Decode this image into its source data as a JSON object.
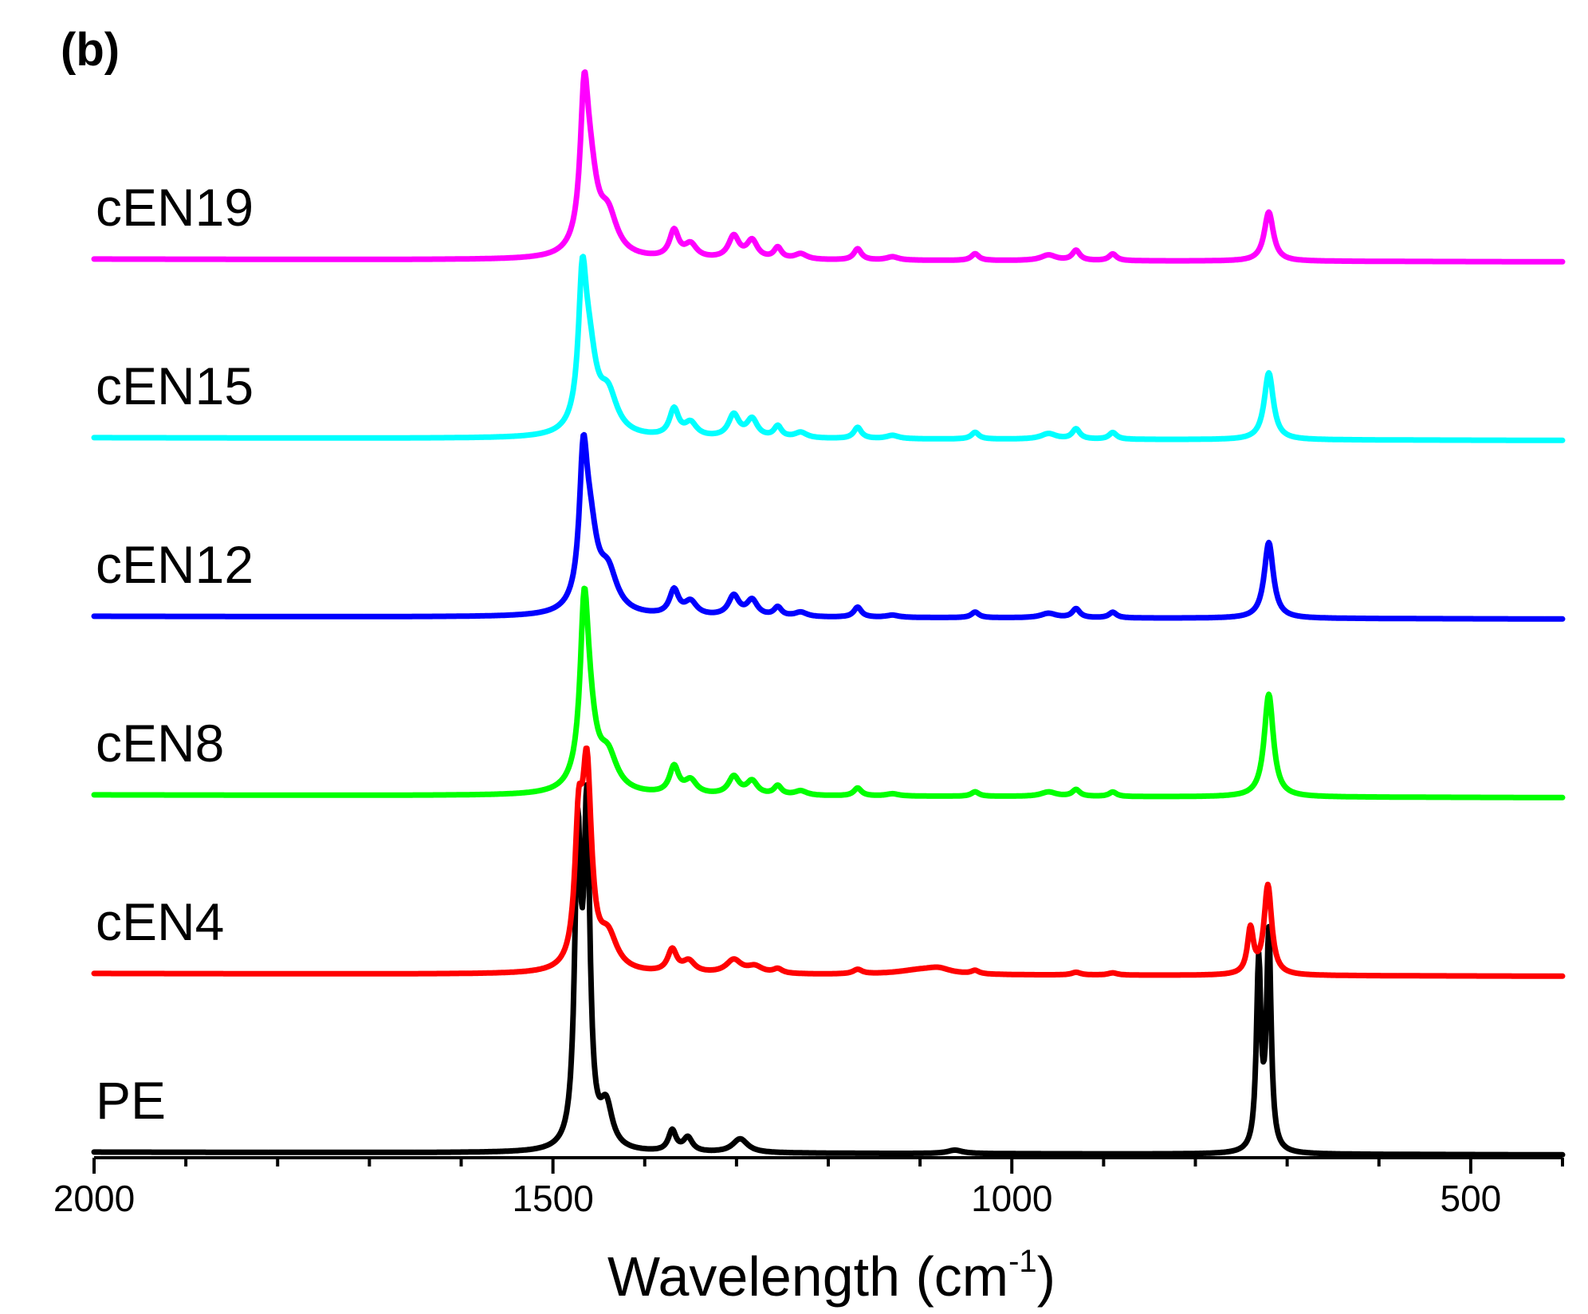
{
  "chart_data": {
    "type": "line",
    "panel_label": "(b)",
    "xlabel": "Wavelength (cm",
    "xlabel_sup": "-1",
    "xlabel_close": ")",
    "xlim": [
      2000,
      400
    ],
    "x_ticks": [
      2000,
      1500,
      1000,
      500
    ],
    "x_tick_labels": [
      "2000",
      "1500",
      "1000",
      "500"
    ],
    "minor_tick_step": 100,
    "y_axis_visible": false,
    "series": [
      {
        "name": "PE",
        "color": "#000000",
        "offset": 0,
        "peak_scale": 1.55,
        "peaks": [
          [
            1473,
            0.86,
            4
          ],
          [
            1463,
            0.93,
            4
          ],
          [
            1442,
            0.12,
            8
          ],
          [
            1370,
            0.06,
            5
          ],
          [
            1353,
            0.04,
            6
          ],
          [
            1296,
            0.04,
            10
          ],
          [
            1062,
            0.01,
            10
          ],
          [
            731,
            0.54,
            3
          ],
          [
            720,
            0.62,
            3
          ]
        ]
      },
      {
        "name": "cEN4",
        "color": "#ff0000",
        "offset": 1,
        "peak_scale": 1.0,
        "peaks": [
          [
            1472,
            0.55,
            5
          ],
          [
            1463,
            0.85,
            6
          ],
          [
            1440,
            0.15,
            12
          ],
          [
            1370,
            0.1,
            6
          ],
          [
            1352,
            0.05,
            8
          ],
          [
            1303,
            0.06,
            10
          ],
          [
            1280,
            0.03,
            10
          ],
          [
            1255,
            0.02,
            6
          ],
          [
            1168,
            0.02,
            6
          ],
          [
            1100,
            0.02,
            30
          ],
          [
            1080,
            0.02,
            15
          ],
          [
            1040,
            0.015,
            5
          ],
          [
            930,
            0.012,
            6
          ],
          [
            890,
            0.01,
            6
          ],
          [
            740,
            0.2,
            4
          ],
          [
            721,
            0.4,
            5
          ]
        ]
      },
      {
        "name": "cEN8",
        "color": "#00ff00",
        "offset": 2,
        "peak_scale": 1.0,
        "peaks": [
          [
            1466,
            0.6,
            5
          ],
          [
            1462,
            0.35,
            10
          ],
          [
            1440,
            0.15,
            12
          ],
          [
            1368,
            0.12,
            6
          ],
          [
            1350,
            0.06,
            8
          ],
          [
            1303,
            0.08,
            7
          ],
          [
            1283,
            0.06,
            7
          ],
          [
            1255,
            0.04,
            5
          ],
          [
            1230,
            0.02,
            8
          ],
          [
            1168,
            0.035,
            5
          ],
          [
            1130,
            0.01,
            8
          ],
          [
            1040,
            0.02,
            5
          ],
          [
            960,
            0.02,
            10
          ],
          [
            930,
            0.03,
            5
          ],
          [
            890,
            0.02,
            5
          ],
          [
            720,
            0.46,
            6
          ]
        ]
      },
      {
        "name": "cEN12",
        "color": "#0000ff",
        "offset": 3,
        "peak_scale": 1.0,
        "peaks": [
          [
            1467,
            0.55,
            5
          ],
          [
            1460,
            0.35,
            10
          ],
          [
            1440,
            0.17,
            12
          ],
          [
            1368,
            0.11,
            6
          ],
          [
            1350,
            0.06,
            8
          ],
          [
            1303,
            0.09,
            7
          ],
          [
            1283,
            0.07,
            7
          ],
          [
            1255,
            0.04,
            5
          ],
          [
            1230,
            0.02,
            8
          ],
          [
            1168,
            0.045,
            5
          ],
          [
            1130,
            0.01,
            8
          ],
          [
            1040,
            0.025,
            5
          ],
          [
            960,
            0.02,
            10
          ],
          [
            930,
            0.04,
            5
          ],
          [
            890,
            0.025,
            5
          ],
          [
            720,
            0.34,
            6
          ]
        ]
      },
      {
        "name": "cEN15",
        "color": "#00ffff",
        "offset": 4,
        "peak_scale": 1.0,
        "peaks": [
          [
            1468,
            0.55,
            5
          ],
          [
            1461,
            0.35,
            10
          ],
          [
            1440,
            0.17,
            12
          ],
          [
            1368,
            0.12,
            6
          ],
          [
            1350,
            0.06,
            8
          ],
          [
            1303,
            0.1,
            7
          ],
          [
            1283,
            0.08,
            7
          ],
          [
            1255,
            0.05,
            5
          ],
          [
            1230,
            0.025,
            8
          ],
          [
            1168,
            0.05,
            5
          ],
          [
            1130,
            0.015,
            8
          ],
          [
            1040,
            0.03,
            5
          ],
          [
            960,
            0.025,
            10
          ],
          [
            930,
            0.045,
            5
          ],
          [
            890,
            0.03,
            5
          ],
          [
            720,
            0.3,
            6
          ]
        ]
      },
      {
        "name": "cEN19",
        "color": "#ff00ff",
        "offset": 5,
        "peak_scale": 1.0,
        "peaks": [
          [
            1466,
            0.55,
            5
          ],
          [
            1460,
            0.35,
            10
          ],
          [
            1440,
            0.17,
            12
          ],
          [
            1368,
            0.12,
            6
          ],
          [
            1350,
            0.06,
            8
          ],
          [
            1303,
            0.1,
            7
          ],
          [
            1283,
            0.08,
            7
          ],
          [
            1255,
            0.05,
            5
          ],
          [
            1230,
            0.025,
            8
          ],
          [
            1168,
            0.05,
            5
          ],
          [
            1130,
            0.015,
            8
          ],
          [
            1040,
            0.03,
            5
          ],
          [
            960,
            0.025,
            10
          ],
          [
            930,
            0.045,
            5
          ],
          [
            890,
            0.03,
            5
          ],
          [
            720,
            0.22,
            6
          ]
        ]
      }
    ]
  }
}
